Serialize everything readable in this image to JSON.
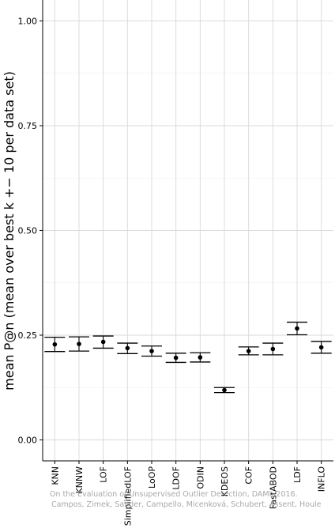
{
  "chart_data": {
    "type": "scatter",
    "ylabel": "mean P@n (mean over best k +− 10 per data set)",
    "xlabel": "",
    "title": "",
    "ylim": [
      -0.05,
      1.05
    ],
    "yticks": [
      0.0,
      0.25,
      0.5,
      0.75,
      1.0
    ],
    "ytick_labels": [
      "0.00",
      "0.25",
      "0.50",
      "0.75",
      "1.00"
    ],
    "grid": true,
    "categories": [
      "KNN",
      "KNNW",
      "LOF",
      "SimplifiedLOF",
      "LoOP",
      "LDOF",
      "ODIN",
      "KDEOS",
      "COF",
      "FastABOD",
      "LDF",
      "INFLO"
    ],
    "series": [
      {
        "mean": [
          0.228,
          0.229,
          0.234,
          0.219,
          0.212,
          0.196,
          0.197,
          0.119,
          0.212,
          0.217,
          0.266,
          0.221
        ],
        "lower": [
          0.211,
          0.212,
          0.219,
          0.206,
          0.2,
          0.185,
          0.186,
          0.113,
          0.203,
          0.203,
          0.251,
          0.207
        ],
        "upper": [
          0.245,
          0.246,
          0.248,
          0.231,
          0.224,
          0.207,
          0.208,
          0.125,
          0.222,
          0.231,
          0.281,
          0.235
        ]
      }
    ],
    "watermark": [
      "On the Evaluation of Unsupervised Outlier Detection, DAMI, 2016.",
      "Campos, Zimek, Sander, Campello, Micenková, Schubert, Assent, Houle"
    ]
  }
}
